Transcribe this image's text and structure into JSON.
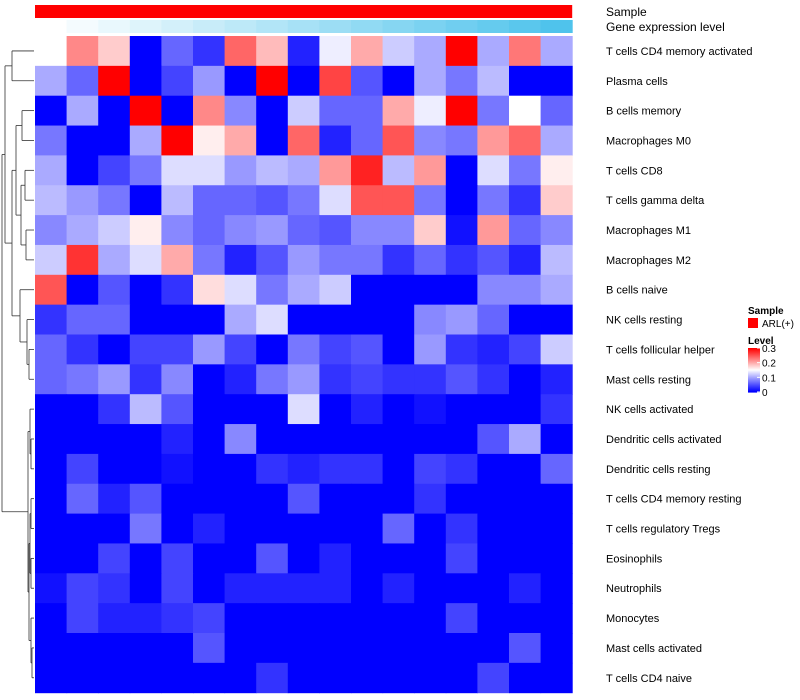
{
  "chart_data": {
    "type": "heatmap",
    "title": "",
    "annotation_tracks": [
      {
        "name": "Sample",
        "label": "Sample",
        "color": "#ff0000"
      },
      {
        "name": "Gene expression level",
        "label": "Gene expression level",
        "gradient_from": "#ffffff",
        "gradient_to": "#4fc3ec"
      }
    ],
    "rows": [
      "T cells CD4 memory activated",
      "Plasma cells",
      "B cells memory",
      "Macrophages M0",
      "T cells CD8",
      "T cells gamma delta",
      "Macrophages M1",
      "Macrophages M2",
      "B cells naive",
      "NK cells resting",
      "T cells follicular helper",
      "Mast cells resting",
      "NK cells activated",
      "Dendritic cells activated",
      "Dendritic cells resting",
      "T cells CD4 memory resting",
      "T cells regulatory  Tregs",
      "Eosinophils",
      "Neutrophils",
      "Monocytes",
      "Mast cells activated",
      "T cells CD4 naive"
    ],
    "n_columns": 17,
    "values": [
      [
        0.15,
        0.22,
        0.18,
        0.0,
        0.06,
        0.03,
        0.24,
        0.19,
        0.02,
        0.14,
        0.2,
        0.12,
        0.1,
        0.3,
        0.1,
        0.23,
        0.1
      ],
      [
        0.1,
        0.06,
        0.3,
        0.0,
        0.04,
        0.09,
        0.0,
        0.3,
        0.0,
        0.26,
        0.05,
        0.0,
        0.1,
        0.07,
        0.11,
        0.0,
        0.0
      ],
      [
        0.0,
        0.1,
        0.0,
        0.3,
        0.0,
        0.22,
        0.08,
        0.0,
        0.12,
        0.06,
        0.06,
        0.2,
        0.14,
        0.3,
        0.07,
        0.15,
        0.06
      ],
      [
        0.07,
        0.0,
        0.0,
        0.1,
        0.3,
        0.16,
        0.2,
        0.0,
        0.24,
        0.02,
        0.06,
        0.25,
        0.08,
        0.07,
        0.21,
        0.24,
        0.1
      ],
      [
        0.1,
        0.0,
        0.04,
        0.07,
        0.13,
        0.13,
        0.09,
        0.11,
        0.1,
        0.21,
        0.28,
        0.11,
        0.21,
        0.0,
        0.13,
        0.07,
        0.16
      ],
      [
        0.11,
        0.09,
        0.07,
        0.0,
        0.11,
        0.06,
        0.06,
        0.05,
        0.07,
        0.13,
        0.25,
        0.25,
        0.07,
        0.0,
        0.07,
        0.03,
        0.18
      ],
      [
        0.08,
        0.1,
        0.12,
        0.16,
        0.08,
        0.06,
        0.08,
        0.09,
        0.06,
        0.05,
        0.08,
        0.08,
        0.18,
        0.01,
        0.21,
        0.06,
        0.08
      ],
      [
        0.12,
        0.27,
        0.1,
        0.13,
        0.2,
        0.07,
        0.02,
        0.05,
        0.09,
        0.07,
        0.07,
        0.03,
        0.06,
        0.03,
        0.05,
        0.02,
        0.11
      ],
      [
        0.25,
        0.0,
        0.05,
        0.0,
        0.03,
        0.17,
        0.13,
        0.07,
        0.1,
        0.12,
        0.0,
        0.0,
        0.0,
        0.0,
        0.08,
        0.08,
        0.1
      ],
      [
        0.03,
        0.06,
        0.06,
        0.0,
        0.0,
        0.0,
        0.1,
        0.13,
        0.0,
        0.0,
        0.0,
        0.0,
        0.08,
        0.09,
        0.06,
        0.0,
        0.0
      ],
      [
        0.06,
        0.03,
        0.0,
        0.04,
        0.04,
        0.09,
        0.04,
        0.0,
        0.07,
        0.04,
        0.05,
        0.0,
        0.09,
        0.03,
        0.02,
        0.04,
        0.12
      ],
      [
        0.06,
        0.07,
        0.09,
        0.03,
        0.08,
        0.0,
        0.02,
        0.07,
        0.09,
        0.03,
        0.04,
        0.03,
        0.03,
        0.05,
        0.03,
        0.0,
        0.02
      ],
      [
        0.0,
        0.0,
        0.03,
        0.11,
        0.05,
        0.0,
        0.0,
        0.0,
        0.13,
        0.0,
        0.02,
        0.0,
        0.01,
        0.0,
        0.0,
        0.0,
        0.03
      ],
      [
        0.0,
        0.0,
        0.0,
        0.0,
        0.02,
        0.0,
        0.08,
        0.0,
        0.0,
        0.0,
        0.0,
        0.0,
        0.0,
        0.0,
        0.05,
        0.1,
        0.0
      ],
      [
        0.0,
        0.04,
        0.0,
        0.0,
        0.01,
        0.0,
        0.0,
        0.03,
        0.02,
        0.03,
        0.03,
        0.0,
        0.04,
        0.03,
        0.0,
        0.0,
        0.06
      ],
      [
        0.0,
        0.06,
        0.02,
        0.05,
        0.0,
        0.0,
        0.0,
        0.0,
        0.05,
        0.0,
        0.0,
        0.0,
        0.03,
        0.0,
        0.0,
        0.0,
        0.0
      ],
      [
        0.0,
        0.0,
        0.0,
        0.07,
        0.0,
        0.02,
        0.0,
        0.0,
        0.0,
        0.0,
        0.0,
        0.06,
        0.0,
        0.03,
        0.0,
        0.0,
        0.0
      ],
      [
        0.0,
        0.0,
        0.04,
        0.0,
        0.04,
        0.0,
        0.0,
        0.05,
        0.0,
        0.02,
        0.0,
        0.0,
        0.0,
        0.04,
        0.0,
        0.0,
        0.0
      ],
      [
        0.01,
        0.04,
        0.03,
        0.0,
        0.04,
        0.0,
        0.02,
        0.02,
        0.02,
        0.02,
        0.0,
        0.02,
        0.0,
        0.0,
        0.0,
        0.02,
        0.0
      ],
      [
        0.0,
        0.04,
        0.02,
        0.02,
        0.03,
        0.04,
        0.0,
        0.0,
        0.0,
        0.0,
        0.0,
        0.0,
        0.0,
        0.04,
        0.0,
        0.0,
        0.0
      ],
      [
        0.0,
        0.0,
        0.0,
        0.0,
        0.0,
        0.05,
        0.0,
        0.0,
        0.0,
        0.0,
        0.0,
        0.0,
        0.0,
        0.0,
        0.0,
        0.05,
        0.0
      ],
      [
        0.0,
        0.0,
        0.0,
        0.0,
        0.0,
        0.0,
        0.0,
        0.03,
        0.0,
        0.0,
        0.0,
        0.0,
        0.0,
        0.0,
        0.04,
        0.0,
        0.0
      ]
    ],
    "color_scale": {
      "min": 0,
      "mid": 0.15,
      "max": 0.3,
      "low_color": "#0000ff",
      "mid_color": "#ffffff",
      "high_color": "#ff0000"
    },
    "legend": {
      "position": "right",
      "sample_title": "Sample",
      "sample_entry": "ARL(+)",
      "sample_color": "#ff0000",
      "level_title": "Level",
      "level_ticks": [
        "0.3",
        "0.2",
        "0.1",
        "0"
      ],
      "level_tick_values": [
        0.3,
        0.2,
        0.1,
        0
      ]
    },
    "row_dendrogram": true
  }
}
